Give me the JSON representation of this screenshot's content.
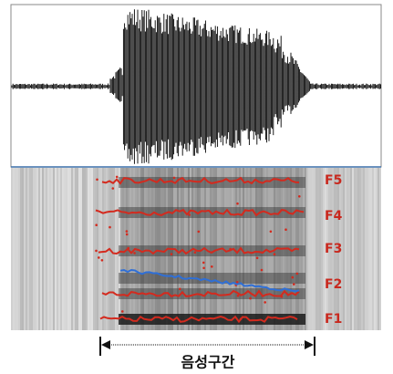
{
  "formant_labels": [
    "F5",
    "F4",
    "F3",
    "F2",
    "F1"
  ],
  "segment_label": "음성구간"
}
